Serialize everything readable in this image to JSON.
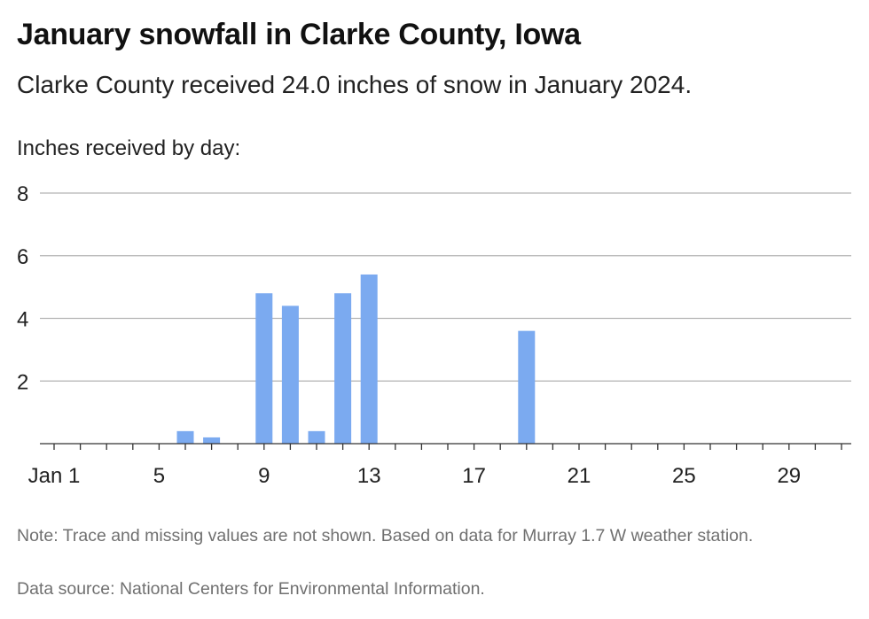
{
  "header": {
    "title": "January snowfall in Clarke County, Iowa",
    "subtitle": "Clarke County received 24.0 inches of snow in January 2024."
  },
  "footer": {
    "note": "Note: Trace and missing values are not shown. Based on data for Murray 1.7 W weather station.",
    "source": "Data source: National Centers for Environmental Information."
  },
  "chart_data": {
    "type": "bar",
    "ylabel": "Inches received by day:",
    "xlabel": "",
    "ylim": [
      0,
      8
    ],
    "yticks": [
      "8",
      "6",
      "4",
      "2"
    ],
    "ytick_values": [
      8,
      6,
      4,
      2
    ],
    "xticks": [
      {
        "day": 1,
        "label": "Jan 1"
      },
      {
        "day": 5,
        "label": "5"
      },
      {
        "day": 9,
        "label": "9"
      },
      {
        "day": 13,
        "label": "13"
      },
      {
        "day": 17,
        "label": "17"
      },
      {
        "day": 21,
        "label": "21"
      },
      {
        "day": 25,
        "label": "25"
      },
      {
        "day": 29,
        "label": "29"
      }
    ],
    "xlim": [
      1,
      31
    ],
    "grid": true,
    "bar_color": "#7baaf0",
    "days": [
      6,
      7,
      9,
      10,
      11,
      12,
      13,
      19
    ],
    "values": [
      0.4,
      0.2,
      4.8,
      4.4,
      0.4,
      4.8,
      5.4,
      3.6
    ]
  }
}
